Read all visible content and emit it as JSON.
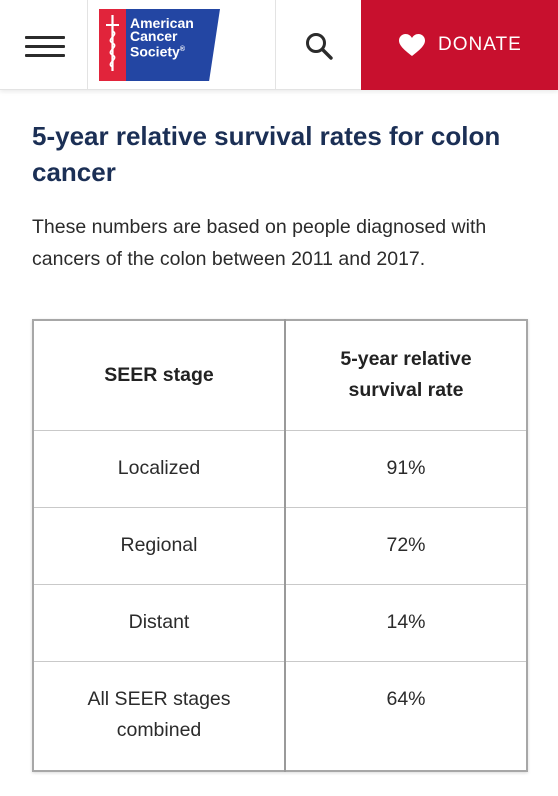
{
  "header": {
    "logo_lines": [
      "American",
      "Cancer",
      "Society"
    ],
    "logo_mark": "®",
    "donate_label": "DONATE",
    "colors": {
      "brand_blue": "#2346a3",
      "brand_red": "#e1243b",
      "donate_bg": "#c8102e"
    }
  },
  "article": {
    "title": "5-year relative survival rates for colon cancer",
    "description": "These numbers are based on people diagnosed with cancers of the colon between 2011 and 2017."
  },
  "table": {
    "headers": [
      "SEER stage",
      "5-year relative survival rate"
    ],
    "rows": [
      {
        "stage": "Localized",
        "rate": "91%"
      },
      {
        "stage": "Regional",
        "rate": "72%"
      },
      {
        "stage": "Distant",
        "rate": "14%"
      },
      {
        "stage": "All SEER stages combined",
        "rate": "64%"
      }
    ]
  },
  "icons": [
    "hamburger-menu-icon",
    "acs-sword-icon",
    "search-icon",
    "heart-icon"
  ]
}
